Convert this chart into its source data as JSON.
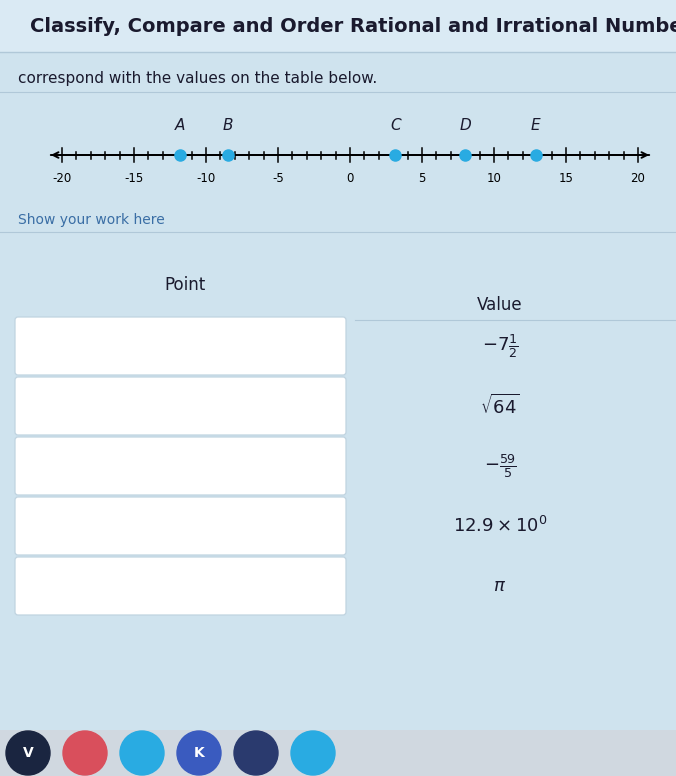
{
  "title": "Classify, Compare and Order Rational and Irrational Numbe",
  "subtitle": "correspond with the values on the table below.",
  "bg_color": "#cfe3ee",
  "title_bg": "#daeaf4",
  "number_line": {
    "label_positions": [
      -20,
      -15,
      -10,
      -5,
      0,
      5,
      10,
      15,
      20
    ],
    "label_texts": [
      "-20",
      "-15",
      "-10",
      "-5",
      "0",
      "5",
      "10",
      "15",
      "20"
    ]
  },
  "points": [
    {
      "label": "A",
      "x": -11.8
    },
    {
      "label": "B",
      "x": -8.5
    },
    {
      "label": "C",
      "x": 3.14
    },
    {
      "label": "D",
      "x": 8.0
    },
    {
      "label": "E",
      "x": 12.9
    }
  ],
  "dot_color": "#29abe2",
  "show_work_text": "Show your work here",
  "table_header_point": "Point",
  "table_header_value": "Value",
  "table_values": [
    "$-7\\frac{1}{2}$",
    "$\\sqrt{64}$",
    "$-\\frac{59}{5}$",
    "$12.9 \\times 10^0$",
    "$\\pi$"
  ]
}
